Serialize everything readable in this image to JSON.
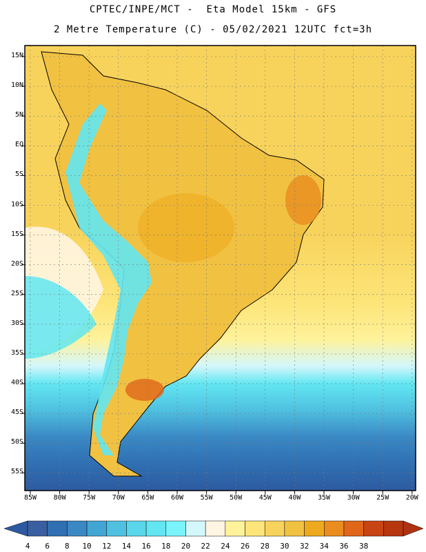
{
  "header": {
    "title_line1": "CPTEC/INPE/MCT -  Eta Model 15km - GFS",
    "title_line2": "2 Metre Temperature (C) - 05/02/2021 12UTC fct=3h"
  },
  "map": {
    "lat_labels": [
      "15N",
      "10N",
      "5N",
      "EQ",
      "5S",
      "10S",
      "15S",
      "20S",
      "25S",
      "30S",
      "35S",
      "40S",
      "45S",
      "50S",
      "55S"
    ],
    "lon_labels": [
      "85W",
      "80W",
      "75W",
      "70W",
      "65W",
      "60W",
      "55W",
      "50W",
      "45W",
      "40W",
      "35W",
      "30W",
      "25W",
      "20W"
    ]
  },
  "colorbar": {
    "labels": [
      "4",
      "6",
      "8",
      "10",
      "12",
      "14",
      "16",
      "18",
      "20",
      "22",
      "24",
      "26",
      "28",
      "30",
      "32",
      "34",
      "36",
      "38"
    ],
    "colors": [
      "#3a5fa0",
      "#2f6fb2",
      "#3a88c4",
      "#42a6d4",
      "#4fc0e0",
      "#5ad6ea",
      "#62e6f2",
      "#79f4fa",
      "#d4f7fb",
      "#fff5e2",
      "#fef29a",
      "#fde579",
      "#f8d35c",
      "#f1c142",
      "#eeaa1e",
      "#ea8c1e",
      "#e0661a",
      "#c84414",
      "#b8360d"
    ],
    "under_color": "#2d5aa0",
    "over_color": "#b03210"
  }
}
